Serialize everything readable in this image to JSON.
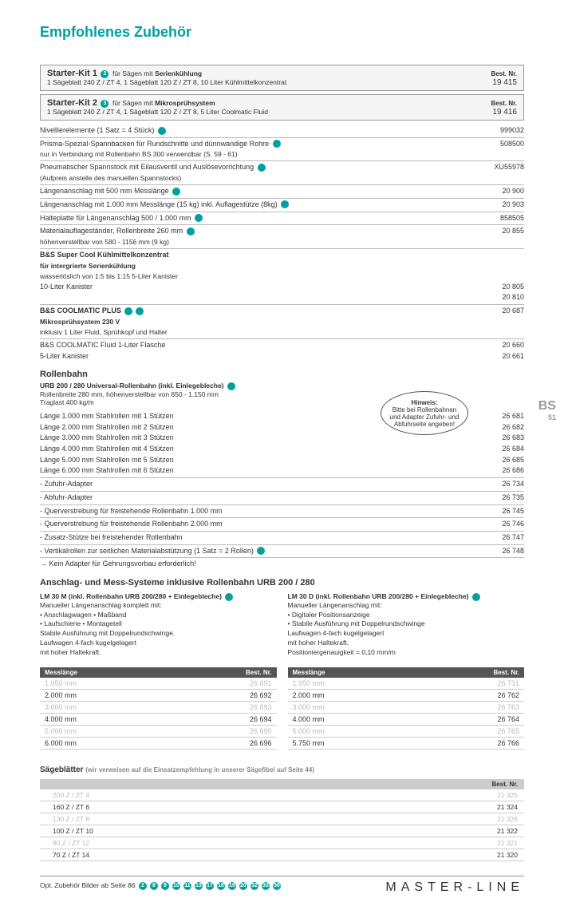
{
  "title": "Empfohlenes Zubehör",
  "bestnr_label": "Best. Nr.",
  "kit1": {
    "name": "Starter-Kit 1",
    "dot": "2",
    "for": "für Sägen mit",
    "forbold": "Serienkühlung",
    "desc": "1 Sägeblatt 240 Z / ZT 4, 1 Sägeblatt 120 Z / ZT 8, 10 Liter Kühlmittelkonzentrat",
    "nr": "19 415"
  },
  "kit2": {
    "name": "Starter-Kit 2",
    "dot": "3",
    "for": "für Sägen mit",
    "forbold": "Mikrosprühsystem",
    "desc": "1 Sägeblatt 240 Z / ZT 4, 1 Sägeblatt 120 Z / ZT 8, 5 Liter Coolmatic Fluid",
    "nr": "19 416"
  },
  "items": [
    {
      "l": "Nivellierelemente (1 Satz = 4 Stück)",
      "r": "999032",
      "dot": true,
      "hr": false
    },
    {
      "l": "Prisma-Spezial-Spannbacken für Rundschnitte und dünnwandige Rohre",
      "r": "508500",
      "dot": true,
      "hr": true
    },
    {
      "l2": "nur in Verbindung mit Rollenbahn BS 300 verwendbar (S. 59 - 61)"
    },
    {
      "l": "Pneumatischer Spannstock mit Eilausventil und Auslösevorrichtung",
      "r": "XU55978",
      "dot": true,
      "hr": true
    },
    {
      "l2": "(Aufpreis anstelle des manuellen Spannstocks)"
    },
    {
      "l": "Längenanschlag mit 500 mm Messlänge",
      "r": "20 900",
      "dot": true,
      "hr": true
    },
    {
      "l": "Längenanschlag mit 1.000 mm Messlänge (15 kg) inkl. Auflagestütze (8kg)",
      "r": "20 903",
      "dot": true,
      "hr": true
    },
    {
      "l": "Halteplatte für Längenanschlag 500 / 1.000 mm",
      "r": "858505",
      "dot": true,
      "hr": true
    },
    {
      "l": "Materialauflageständer, Rollenbreite 260 mm",
      "r": "20 855",
      "dot": true,
      "hr": true
    },
    {
      "l2": "höhenverstellbar von 580 - 1156 mm (9 kg)"
    },
    {
      "l": "B&S Super Cool Kühlmittelkonzentrat",
      "r": "",
      "dot": false,
      "hr": true,
      "b": true
    },
    {
      "l2": "für intergrierte Serienkühlung",
      "b": true
    },
    {
      "l2": "wasserlöslich von 1:5 bis 1:15 5-Liter Kanister"
    },
    {
      "l": "10-Liter Kanister",
      "r": "20 805"
    },
    {
      "l": "",
      "r": "20 810"
    },
    {
      "l": "B&S COOLMATIC PLUS",
      "r": "20 687",
      "dot2": true,
      "hr": true,
      "b": true
    },
    {
      "l2": "Mikrosprühsystem 230 V",
      "b": true
    },
    {
      "l2": "inklusiv 1 Liter Fluid, Sprühkopf und Halter"
    },
    {
      "l": "B&S COOLMATIC Fluid 1-Liter Flasche",
      "r": "20 660",
      "hr": true
    },
    {
      "l": "5-Liter Kanister",
      "r": "20 661"
    }
  ],
  "rollenbahn": {
    "title": "Rollenbahn",
    "head": "URB 200 / 280 Universal-Rollenbahn (inkl. Einlegebleche)",
    "sub1": "Rollenbreite 280 mm, höhenverstellbar von 650 - 1.150 mm",
    "sub2": "Traglast 400 kg/m",
    "rows": [
      {
        "l": "Länge 1.000 mm Stahlrollen mit 1 Stützen",
        "r": "26 681"
      },
      {
        "l": "Länge 2.000 mm Stahlrollen mit 2 Stützen",
        "r": "26 682"
      },
      {
        "l": "Länge 3.000 mm Stahlrollen mit 3 Stützen",
        "r": "26 683"
      },
      {
        "l": "Länge 4.000 mm Stahlrollen mit 4 Stützen",
        "r": "26 684"
      },
      {
        "l": "Länge 5.000 mm Stahlrollen mit 5 Stützen",
        "r": "26 685"
      },
      {
        "l": "Länge 6.000 mm Stahlrollen mit 6 Stützen",
        "r": "26 686"
      },
      {
        "l": "- Zufuhr-Adapter",
        "r": "26 734",
        "hr": true
      },
      {
        "l": "- Abfuhr-Adapter",
        "r": "26 735",
        "hr": true
      },
      {
        "l": "- Querverstrebung für freistehende Rollenbahn 1.000 mm",
        "r": "26 745",
        "hr": true
      },
      {
        "l": "- Querverstrebung für freistehende Rollenbahn 2.000 mm",
        "r": "26 746",
        "hr": true
      },
      {
        "l": "- Zusatz-Stütze bei freistehender Rollenbahn",
        "r": "26 747",
        "hr": true
      },
      {
        "l": "- Vertikalrollen zur seitlichen Materialabstützung (1 Satz = 2 Rollen)",
        "r": "26 748",
        "dot": true,
        "hr": true
      },
      {
        "l": "→ Kein Adapter für Gehrungsvorbau erforderlich!",
        "hr": true
      }
    ]
  },
  "hint": {
    "title": "Hinweis:",
    "text": "Bitte bei Rollenbahnen und Adapter Zufuhr- und Abfuhrseite angeben!"
  },
  "anschlag": {
    "title": "Anschlag- und Mess-Systeme inklusive Rollenbahn URB 200 / 280",
    "left": {
      "head": "LM 30 M (inkl. Rollenbahn URB 200/280 + Einlegebleche)",
      "lines": [
        "Manueller Längenanschlag komplett mit:",
        "• Anschlagwagen             • Maßband",
        "• Laufschiene               • Montageteil",
        "Stabile Ausführung mit Doppelrundschwinge.",
        "Laufwagen 4-fach kugelgelagert",
        "mit hoher Haltekraft."
      ]
    },
    "right": {
      "head": "LM 30 D (inkl. Rollenbahn URB 200/280 + Einlegebleche)",
      "lines": [
        "Manueller Längenanschlag mit:",
        "• Digitaler Positionsanzeige",
        "• Stabile Ausführung mit Doppelrundschwinge",
        "Laufwagen 4-fach kugelgelagert",
        "mit hoher Haltekraft.",
        "Positioniergenauigkeit = 0,10 mm/m"
      ]
    },
    "col_mess": "Messlänge",
    "col_best": "Best. Nr.",
    "tableL": [
      {
        "m": "1.950 mm",
        "n": "26 691",
        "dim": true
      },
      {
        "m": "2.000 mm",
        "n": "26 692"
      },
      {
        "m": "3.000 mm",
        "n": "26 693",
        "dim": true
      },
      {
        "m": "4.000 mm",
        "n": "26 694"
      },
      {
        "m": "5.000 mm",
        "n": "26 695",
        "dim": true
      },
      {
        "m": "6.000 mm",
        "n": "26 696"
      }
    ],
    "tableR": [
      {
        "m": "1.950 mm",
        "n": "26 731",
        "dim": true
      },
      {
        "m": "2.000 mm",
        "n": "26 762"
      },
      {
        "m": "3.000 mm",
        "n": "26 763",
        "dim": true
      },
      {
        "m": "4.000 mm",
        "n": "26 764"
      },
      {
        "m": "5.000 mm",
        "n": "26 765",
        "dim": true
      },
      {
        "m": "5.750 mm",
        "n": "26 766"
      }
    ]
  },
  "sage": {
    "title": "Sägeblätter",
    "sub": "(wir verweisen auf die Einsatzempfehlung in unserer Sägefibel auf Seite 44)",
    "col": "Best. Nr.",
    "rows": [
      {
        "l": "200 Z / ZT 4",
        "r": "21 325",
        "dim": true
      },
      {
        "l": "160 Z / ZT 6",
        "r": "21 324"
      },
      {
        "l": "130 Z / ZT 8",
        "r": "21 326",
        "dim": true
      },
      {
        "l": "100 Z / ZT 10",
        "r": "21 322"
      },
      {
        "l": "80 Z / ZT 12",
        "r": "21 321",
        "dim": true
      },
      {
        "l": "70 Z / ZT 14",
        "r": "21 320"
      }
    ]
  },
  "footer": {
    "text": "Opt. Zubehör Bilder ab Seite 86",
    "dots": [
      "2",
      "8",
      "9",
      "10",
      "11",
      "13",
      "17",
      "18",
      "19",
      "20",
      "32",
      "33",
      "36"
    ]
  },
  "brand": "MASTER-LINE",
  "sidecode": {
    "big": "BS",
    "small": "51"
  }
}
